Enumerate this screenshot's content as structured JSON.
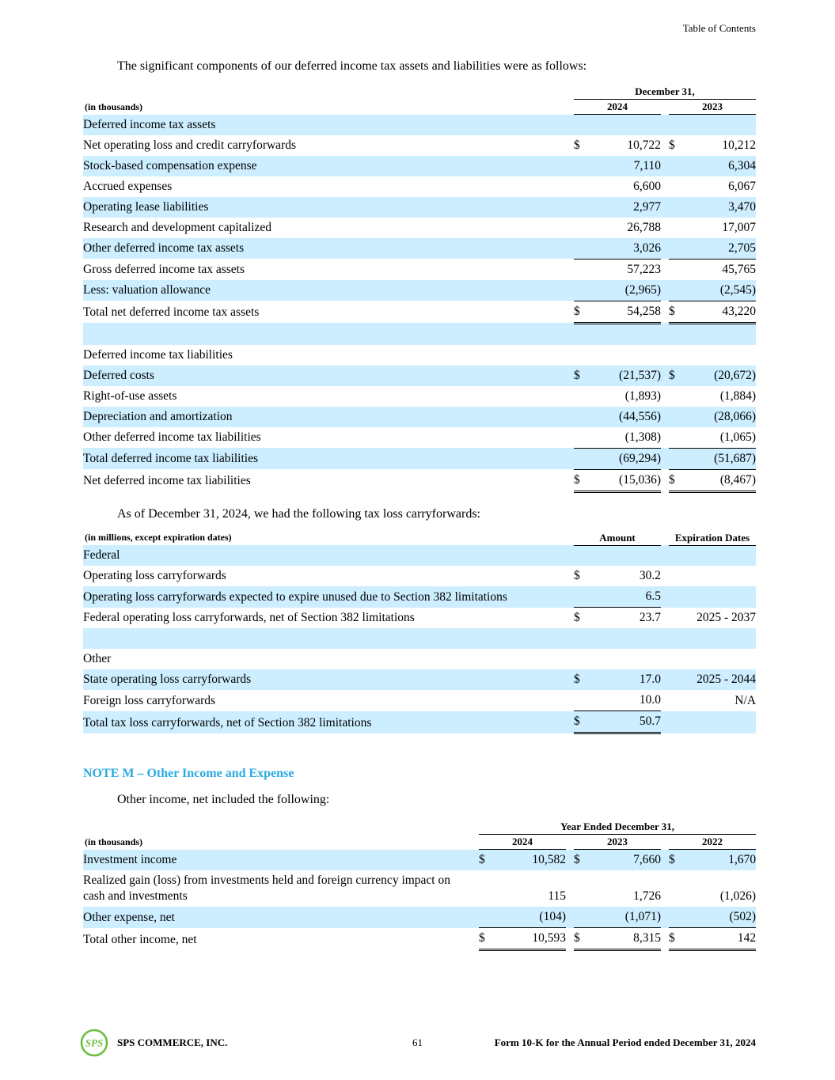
{
  "page": {
    "toc_label": "Table of Contents",
    "footer": {
      "logo_text": "SPS",
      "company": "SPS COMMERCE, INC.",
      "page_number": "61",
      "form_line": "Form 10-K for the Annual Period ended December 31, 2024"
    }
  },
  "colors": {
    "row_highlight": "#cceeff",
    "note_heading_blue": "#29abe2",
    "logo_green": "#6fbe44"
  },
  "sections": {
    "intro_deferred_tax": "The significant components of our deferred income tax assets and liabilities were as follows:",
    "intro_carryforwards": "As of December 31, 2024, we had the following tax loss carryforwards:",
    "note_m_heading": "NOTE M – Other Income and Expense",
    "intro_other_income": "Other income, net included the following:"
  },
  "deferred_tax_table": {
    "units": "(in thousands)",
    "span_header": "December 31,",
    "years": [
      "2024",
      "2023"
    ],
    "rows": [
      {
        "label": "Deferred income tax assets",
        "indent": 0,
        "hl": true
      },
      {
        "label": "Net operating loss and credit carryforwards",
        "indent": 1,
        "cells": [
          [
            "$",
            "10,722"
          ],
          [
            "$",
            "10,212"
          ]
        ]
      },
      {
        "label": "Stock-based compensation expense",
        "indent": 1,
        "hl": true,
        "cells": [
          [
            "",
            "7,110"
          ],
          [
            "",
            "6,304"
          ]
        ]
      },
      {
        "label": "Accrued expenses",
        "indent": 1,
        "cells": [
          [
            "",
            "6,600"
          ],
          [
            "",
            "6,067"
          ]
        ]
      },
      {
        "label": "Operating lease liabilities",
        "indent": 1,
        "hl": true,
        "cells": [
          [
            "",
            "2,977"
          ],
          [
            "",
            "3,470"
          ]
        ]
      },
      {
        "label": "Research and development capitalized",
        "indent": 1,
        "cells": [
          [
            "",
            "26,788"
          ],
          [
            "",
            "17,007"
          ]
        ]
      },
      {
        "label": "Other deferred income tax assets",
        "indent": 1,
        "hl": true,
        "cells": [
          [
            "",
            "3,026"
          ],
          [
            "",
            "2,705"
          ]
        ],
        "ub": "s"
      },
      {
        "label": "Gross deferred income tax assets",
        "indent": 0,
        "cells": [
          [
            "",
            "57,223"
          ],
          [
            "",
            "45,765"
          ]
        ]
      },
      {
        "label": "Less: valuation allowance",
        "indent": 1,
        "hl": true,
        "cells": [
          [
            "",
            "(2,965)"
          ],
          [
            "",
            "(2,545)"
          ]
        ],
        "ub": "s"
      },
      {
        "label": "Total net deferred income tax assets",
        "indent": 0,
        "cells": [
          [
            "$",
            "54,258"
          ],
          [
            "$",
            "43,220"
          ]
        ],
        "ub": "d"
      },
      {
        "spacer": true
      },
      {
        "label": "Deferred income tax liabilities",
        "indent": 0
      },
      {
        "label": "Deferred costs",
        "indent": 1,
        "hl": true,
        "cells": [
          [
            "$",
            "(21,537)"
          ],
          [
            "$",
            "(20,672)"
          ]
        ]
      },
      {
        "label": "Right-of-use assets",
        "indent": 1,
        "cells": [
          [
            "",
            "(1,893)"
          ],
          [
            "",
            "(1,884)"
          ]
        ]
      },
      {
        "label": "Depreciation and amortization",
        "indent": 1,
        "hl": true,
        "cells": [
          [
            "",
            "(44,556)"
          ],
          [
            "",
            "(28,066)"
          ]
        ]
      },
      {
        "label": "Other deferred income tax liabilities",
        "indent": 1,
        "cells": [
          [
            "",
            "(1,308)"
          ],
          [
            "",
            "(1,065)"
          ]
        ],
        "ub": "s"
      },
      {
        "label": "Total deferred income tax liabilities",
        "indent": 0,
        "hl": true,
        "cells": [
          [
            "",
            "(69,294)"
          ],
          [
            "",
            "(51,687)"
          ]
        ],
        "ub": "s"
      },
      {
        "label": "Net deferred income tax liabilities",
        "indent": 0,
        "cells": [
          [
            "$",
            "(15,036)"
          ],
          [
            "$",
            "(8,467)"
          ]
        ],
        "ub": "d"
      }
    ]
  },
  "carryforwards_table": {
    "units": "(in millions, except expiration dates)",
    "col_headers": [
      "Amount",
      "Expiration Dates"
    ],
    "rows": [
      {
        "label": "Federal",
        "indent": 0,
        "hl": true
      },
      {
        "label": "Operating loss carryforwards",
        "indent": 1,
        "cells": [
          [
            "$",
            "30.2"
          ]
        ]
      },
      {
        "label": "Operating loss carryforwards expected to expire unused due to Section 382 limitations",
        "indent": 1,
        "hl": true,
        "cells": [
          [
            "",
            "6.5"
          ]
        ],
        "ub": "s"
      },
      {
        "label": "Federal operating loss carryforwards, net of Section 382 limitations",
        "indent": 0,
        "cells": [
          [
            "$",
            "23.7"
          ]
        ],
        "exp": "2025 - 2037"
      },
      {
        "spacer": true
      },
      {
        "label": "Other",
        "indent": 0
      },
      {
        "label": "State operating loss carryforwards",
        "indent": 1,
        "hl": true,
        "cells": [
          [
            "$",
            "17.0"
          ]
        ],
        "exp": "2025 - 2044"
      },
      {
        "label": "Foreign loss carryforwards",
        "indent": 1,
        "cells": [
          [
            "",
            "10.0"
          ]
        ],
        "exp": "N/A",
        "ub": "s"
      },
      {
        "label": "Total tax loss carryforwards, net of Section 382 limitations",
        "indent": 0,
        "hl": true,
        "cells": [
          [
            "$",
            "50.7"
          ]
        ],
        "ub": "d"
      }
    ]
  },
  "other_income_table": {
    "units": "(in thousands)",
    "span_header": "Year Ended December 31,",
    "years": [
      "2024",
      "2023",
      "2022"
    ],
    "rows": [
      {
        "label": "Investment income",
        "indent": 0,
        "hl": true,
        "cells": [
          [
            "$",
            "10,582"
          ],
          [
            "$",
            "7,660"
          ],
          [
            "$",
            "1,670"
          ]
        ]
      },
      {
        "label": "Realized gain (loss) from investments held and foreign currency impact on cash and investments",
        "indent": 0,
        "cells": [
          [
            "",
            "115"
          ],
          [
            "",
            "1,726"
          ],
          [
            "",
            "(1,026)"
          ]
        ]
      },
      {
        "label": "Other expense, net",
        "indent": 0,
        "hl": true,
        "cells": [
          [
            "",
            "(104)"
          ],
          [
            "",
            "(1,071)"
          ],
          [
            "",
            "(502)"
          ]
        ],
        "ub": "s"
      },
      {
        "label": "Total other income, net",
        "indent": 1,
        "cells": [
          [
            "$",
            "10,593"
          ],
          [
            "$",
            "8,315"
          ],
          [
            "$",
            "142"
          ]
        ],
        "ub": "d"
      }
    ]
  }
}
